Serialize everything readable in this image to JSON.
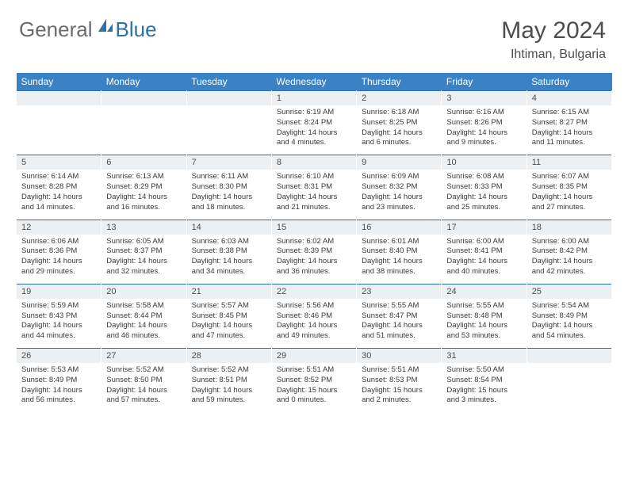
{
  "logo": {
    "general": "General",
    "blue": "Blue"
  },
  "title": "May 2024",
  "location": "Ihtiman, Bulgaria",
  "colors": {
    "header_bg": "#3b82c4",
    "header_text": "#ffffff",
    "daynum_bg": "#edf0f2",
    "border": "#2f6fa8",
    "text": "#3a3a3a",
    "title_text": "#4d4d4d",
    "logo_gray": "#6b6b6b",
    "logo_blue": "#2f6fa8"
  },
  "days_of_week": [
    "Sunday",
    "Monday",
    "Tuesday",
    "Wednesday",
    "Thursday",
    "Friday",
    "Saturday"
  ],
  "weeks": [
    {
      "nums": [
        "",
        "",
        "",
        "1",
        "2",
        "3",
        "4"
      ],
      "details": [
        null,
        null,
        null,
        {
          "sunrise": "Sunrise: 6:19 AM",
          "sunset": "Sunset: 8:24 PM",
          "day1": "Daylight: 14 hours",
          "day2": "and 4 minutes."
        },
        {
          "sunrise": "Sunrise: 6:18 AM",
          "sunset": "Sunset: 8:25 PM",
          "day1": "Daylight: 14 hours",
          "day2": "and 6 minutes."
        },
        {
          "sunrise": "Sunrise: 6:16 AM",
          "sunset": "Sunset: 8:26 PM",
          "day1": "Daylight: 14 hours",
          "day2": "and 9 minutes."
        },
        {
          "sunrise": "Sunrise: 6:15 AM",
          "sunset": "Sunset: 8:27 PM",
          "day1": "Daylight: 14 hours",
          "day2": "and 11 minutes."
        }
      ]
    },
    {
      "nums": [
        "5",
        "6",
        "7",
        "8",
        "9",
        "10",
        "11"
      ],
      "details": [
        {
          "sunrise": "Sunrise: 6:14 AM",
          "sunset": "Sunset: 8:28 PM",
          "day1": "Daylight: 14 hours",
          "day2": "and 14 minutes."
        },
        {
          "sunrise": "Sunrise: 6:13 AM",
          "sunset": "Sunset: 8:29 PM",
          "day1": "Daylight: 14 hours",
          "day2": "and 16 minutes."
        },
        {
          "sunrise": "Sunrise: 6:11 AM",
          "sunset": "Sunset: 8:30 PM",
          "day1": "Daylight: 14 hours",
          "day2": "and 18 minutes."
        },
        {
          "sunrise": "Sunrise: 6:10 AM",
          "sunset": "Sunset: 8:31 PM",
          "day1": "Daylight: 14 hours",
          "day2": "and 21 minutes."
        },
        {
          "sunrise": "Sunrise: 6:09 AM",
          "sunset": "Sunset: 8:32 PM",
          "day1": "Daylight: 14 hours",
          "day2": "and 23 minutes."
        },
        {
          "sunrise": "Sunrise: 6:08 AM",
          "sunset": "Sunset: 8:33 PM",
          "day1": "Daylight: 14 hours",
          "day2": "and 25 minutes."
        },
        {
          "sunrise": "Sunrise: 6:07 AM",
          "sunset": "Sunset: 8:35 PM",
          "day1": "Daylight: 14 hours",
          "day2": "and 27 minutes."
        }
      ]
    },
    {
      "nums": [
        "12",
        "13",
        "14",
        "15",
        "16",
        "17",
        "18"
      ],
      "details": [
        {
          "sunrise": "Sunrise: 6:06 AM",
          "sunset": "Sunset: 8:36 PM",
          "day1": "Daylight: 14 hours",
          "day2": "and 29 minutes."
        },
        {
          "sunrise": "Sunrise: 6:05 AM",
          "sunset": "Sunset: 8:37 PM",
          "day1": "Daylight: 14 hours",
          "day2": "and 32 minutes."
        },
        {
          "sunrise": "Sunrise: 6:03 AM",
          "sunset": "Sunset: 8:38 PM",
          "day1": "Daylight: 14 hours",
          "day2": "and 34 minutes."
        },
        {
          "sunrise": "Sunrise: 6:02 AM",
          "sunset": "Sunset: 8:39 PM",
          "day1": "Daylight: 14 hours",
          "day2": "and 36 minutes."
        },
        {
          "sunrise": "Sunrise: 6:01 AM",
          "sunset": "Sunset: 8:40 PM",
          "day1": "Daylight: 14 hours",
          "day2": "and 38 minutes."
        },
        {
          "sunrise": "Sunrise: 6:00 AM",
          "sunset": "Sunset: 8:41 PM",
          "day1": "Daylight: 14 hours",
          "day2": "and 40 minutes."
        },
        {
          "sunrise": "Sunrise: 6:00 AM",
          "sunset": "Sunset: 8:42 PM",
          "day1": "Daylight: 14 hours",
          "day2": "and 42 minutes."
        }
      ]
    },
    {
      "nums": [
        "19",
        "20",
        "21",
        "22",
        "23",
        "24",
        "25"
      ],
      "details": [
        {
          "sunrise": "Sunrise: 5:59 AM",
          "sunset": "Sunset: 8:43 PM",
          "day1": "Daylight: 14 hours",
          "day2": "and 44 minutes."
        },
        {
          "sunrise": "Sunrise: 5:58 AM",
          "sunset": "Sunset: 8:44 PM",
          "day1": "Daylight: 14 hours",
          "day2": "and 46 minutes."
        },
        {
          "sunrise": "Sunrise: 5:57 AM",
          "sunset": "Sunset: 8:45 PM",
          "day1": "Daylight: 14 hours",
          "day2": "and 47 minutes."
        },
        {
          "sunrise": "Sunrise: 5:56 AM",
          "sunset": "Sunset: 8:46 PM",
          "day1": "Daylight: 14 hours",
          "day2": "and 49 minutes."
        },
        {
          "sunrise": "Sunrise: 5:55 AM",
          "sunset": "Sunset: 8:47 PM",
          "day1": "Daylight: 14 hours",
          "day2": "and 51 minutes."
        },
        {
          "sunrise": "Sunrise: 5:55 AM",
          "sunset": "Sunset: 8:48 PM",
          "day1": "Daylight: 14 hours",
          "day2": "and 53 minutes."
        },
        {
          "sunrise": "Sunrise: 5:54 AM",
          "sunset": "Sunset: 8:49 PM",
          "day1": "Daylight: 14 hours",
          "day2": "and 54 minutes."
        }
      ]
    },
    {
      "nums": [
        "26",
        "27",
        "28",
        "29",
        "30",
        "31",
        ""
      ],
      "details": [
        {
          "sunrise": "Sunrise: 5:53 AM",
          "sunset": "Sunset: 8:49 PM",
          "day1": "Daylight: 14 hours",
          "day2": "and 56 minutes."
        },
        {
          "sunrise": "Sunrise: 5:52 AM",
          "sunset": "Sunset: 8:50 PM",
          "day1": "Daylight: 14 hours",
          "day2": "and 57 minutes."
        },
        {
          "sunrise": "Sunrise: 5:52 AM",
          "sunset": "Sunset: 8:51 PM",
          "day1": "Daylight: 14 hours",
          "day2": "and 59 minutes."
        },
        {
          "sunrise": "Sunrise: 5:51 AM",
          "sunset": "Sunset: 8:52 PM",
          "day1": "Daylight: 15 hours",
          "day2": "and 0 minutes."
        },
        {
          "sunrise": "Sunrise: 5:51 AM",
          "sunset": "Sunset: 8:53 PM",
          "day1": "Daylight: 15 hours",
          "day2": "and 2 minutes."
        },
        {
          "sunrise": "Sunrise: 5:50 AM",
          "sunset": "Sunset: 8:54 PM",
          "day1": "Daylight: 15 hours",
          "day2": "and 3 minutes."
        },
        null
      ]
    }
  ]
}
